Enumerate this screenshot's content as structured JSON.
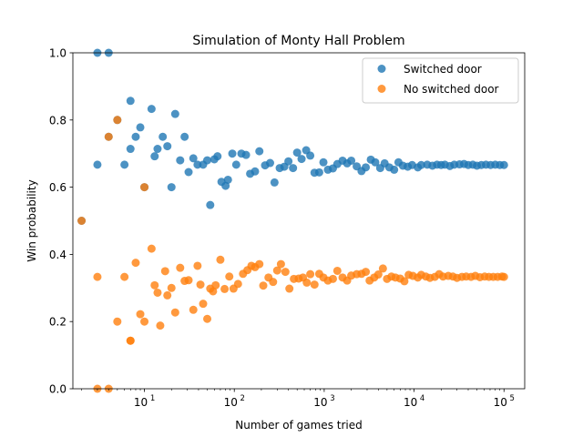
{
  "chart_data": {
    "type": "scatter",
    "title": "Simulation of Monty Hall Problem",
    "xlabel": "Number of games tried",
    "ylabel": "Win probability",
    "xscale": "log",
    "xlim": [
      1.6,
      170000
    ],
    "ylim": [
      0,
      1
    ],
    "grid": false,
    "legend": "top-right",
    "x_ticks": [
      {
        "v": 10,
        "b": "10",
        "e": "1"
      },
      {
        "v": 100,
        "b": "10",
        "e": "2"
      },
      {
        "v": 1000,
        "b": "10",
        "e": "3"
      },
      {
        "v": 10000,
        "b": "10",
        "e": "4"
      },
      {
        "v": 100000,
        "b": "10",
        "e": "5"
      }
    ],
    "y_ticks": [
      "0.0",
      "0.2",
      "0.4",
      "0.6",
      "0.8",
      "1.0"
    ],
    "series": [
      {
        "name": "Switched door",
        "color": "#1f77b4",
        "points": [
          [
            2,
            0.5
          ],
          [
            3,
            0.667
          ],
          [
            3,
            1.0
          ],
          [
            4,
            1.0
          ],
          [
            4,
            0.75
          ],
          [
            5,
            0.8
          ],
          [
            6,
            0.667
          ],
          [
            7,
            0.714
          ],
          [
            7,
            0.857
          ],
          [
            8,
            0.75
          ],
          [
            9,
            0.778
          ],
          [
            10,
            0.6
          ],
          [
            12,
            0.833
          ],
          [
            13,
            0.692
          ],
          [
            14,
            0.714
          ],
          [
            16,
            0.75
          ],
          [
            18,
            0.722
          ],
          [
            20,
            0.6
          ],
          [
            22,
            0.818
          ],
          [
            25,
            0.68
          ],
          [
            28,
            0.75
          ],
          [
            31,
            0.645
          ],
          [
            35,
            0.686
          ],
          [
            39,
            0.667
          ],
          [
            45,
            0.667
          ],
          [
            50,
            0.68
          ],
          [
            54,
            0.547
          ],
          [
            60,
            0.683
          ],
          [
            65,
            0.692
          ],
          [
            72,
            0.616
          ],
          [
            80,
            0.604
          ],
          [
            85,
            0.622
          ],
          [
            95,
            0.7
          ],
          [
            105,
            0.667
          ],
          [
            120,
            0.7
          ],
          [
            135,
            0.696
          ],
          [
            150,
            0.64
          ],
          [
            170,
            0.647
          ],
          [
            190,
            0.707
          ],
          [
            220,
            0.665
          ],
          [
            250,
            0.672
          ],
          [
            280,
            0.614
          ],
          [
            320,
            0.657
          ],
          [
            360,
            0.661
          ],
          [
            400,
            0.677
          ],
          [
            450,
            0.657
          ],
          [
            500,
            0.703
          ],
          [
            560,
            0.684
          ],
          [
            630,
            0.71
          ],
          [
            700,
            0.694
          ],
          [
            780,
            0.643
          ],
          [
            880,
            0.644
          ],
          [
            980,
            0.674
          ],
          [
            1100,
            0.652
          ],
          [
            1250,
            0.656
          ],
          [
            1400,
            0.669
          ],
          [
            1600,
            0.679
          ],
          [
            1800,
            0.671
          ],
          [
            2000,
            0.679
          ],
          [
            2300,
            0.662
          ],
          [
            2600,
            0.648
          ],
          [
            2900,
            0.659
          ],
          [
            3300,
            0.682
          ],
          [
            3700,
            0.674
          ],
          [
            4200,
            0.657
          ],
          [
            4700,
            0.671
          ],
          [
            5300,
            0.659
          ],
          [
            6000,
            0.652
          ],
          [
            6700,
            0.674
          ],
          [
            7500,
            0.664
          ],
          [
            8500,
            0.661
          ],
          [
            9500,
            0.666
          ],
          [
            11000,
            0.659
          ],
          [
            12000,
            0.666
          ],
          [
            14000,
            0.667
          ],
          [
            16000,
            0.664
          ],
          [
            18000,
            0.667
          ],
          [
            20000,
            0.666
          ],
          [
            22000,
            0.667
          ],
          [
            25000,
            0.663
          ],
          [
            28000,
            0.667
          ],
          [
            32000,
            0.668
          ],
          [
            36000,
            0.669
          ],
          [
            40000,
            0.666
          ],
          [
            45000,
            0.667
          ],
          [
            50000,
            0.664
          ],
          [
            56000,
            0.666
          ],
          [
            63000,
            0.667
          ],
          [
            71000,
            0.666
          ],
          [
            80000,
            0.667
          ],
          [
            90000,
            0.666
          ],
          [
            100000,
            0.666
          ]
        ]
      },
      {
        "name": "No switched door",
        "color": "#ff7f0e",
        "points": [
          [
            2,
            0.5
          ],
          [
            3,
            0.333
          ],
          [
            3,
            0.0
          ],
          [
            4,
            0.0
          ],
          [
            4,
            0.75
          ],
          [
            5,
            0.8
          ],
          [
            5,
            0.2
          ],
          [
            6,
            0.333
          ],
          [
            7,
            0.143
          ],
          [
            7,
            0.143
          ],
          [
            8,
            0.375
          ],
          [
            9,
            0.222
          ],
          [
            10,
            0.6
          ],
          [
            10,
            0.2
          ],
          [
            12,
            0.417
          ],
          [
            13,
            0.308
          ],
          [
            14,
            0.286
          ],
          [
            15,
            0.188
          ],
          [
            17,
            0.35
          ],
          [
            18,
            0.278
          ],
          [
            20,
            0.3
          ],
          [
            22,
            0.227
          ],
          [
            25,
            0.36
          ],
          [
            28,
            0.321
          ],
          [
            31,
            0.323
          ],
          [
            35,
            0.235
          ],
          [
            39,
            0.366
          ],
          [
            42,
            0.31
          ],
          [
            45,
            0.253
          ],
          [
            50,
            0.208
          ],
          [
            54,
            0.298
          ],
          [
            58,
            0.29
          ],
          [
            62,
            0.308
          ],
          [
            70,
            0.384
          ],
          [
            78,
            0.297
          ],
          [
            88,
            0.334
          ],
          [
            98,
            0.298
          ],
          [
            110,
            0.312
          ],
          [
            125,
            0.342
          ],
          [
            140,
            0.353
          ],
          [
            155,
            0.366
          ],
          [
            170,
            0.362
          ],
          [
            190,
            0.371
          ],
          [
            210,
            0.307
          ],
          [
            240,
            0.331
          ],
          [
            270,
            0.318
          ],
          [
            300,
            0.352
          ],
          [
            330,
            0.371
          ],
          [
            370,
            0.348
          ],
          [
            410,
            0.298
          ],
          [
            460,
            0.327
          ],
          [
            520,
            0.328
          ],
          [
            580,
            0.331
          ],
          [
            640,
            0.316
          ],
          [
            700,
            0.341
          ],
          [
            780,
            0.31
          ],
          [
            880,
            0.342
          ],
          [
            980,
            0.331
          ],
          [
            1100,
            0.322
          ],
          [
            1250,
            0.327
          ],
          [
            1400,
            0.351
          ],
          [
            1600,
            0.331
          ],
          [
            1800,
            0.322
          ],
          [
            2000,
            0.337
          ],
          [
            2300,
            0.341
          ],
          [
            2600,
            0.342
          ],
          [
            2900,
            0.348
          ],
          [
            3200,
            0.322
          ],
          [
            3600,
            0.331
          ],
          [
            4000,
            0.34
          ],
          [
            4500,
            0.358
          ],
          [
            5000,
            0.327
          ],
          [
            5600,
            0.334
          ],
          [
            6200,
            0.331
          ],
          [
            7000,
            0.328
          ],
          [
            7800,
            0.32
          ],
          [
            8700,
            0.339
          ],
          [
            9700,
            0.336
          ],
          [
            11000,
            0.331
          ],
          [
            12000,
            0.339
          ],
          [
            13500,
            0.334
          ],
          [
            15000,
            0.33
          ],
          [
            17000,
            0.333
          ],
          [
            19000,
            0.341
          ],
          [
            21000,
            0.334
          ],
          [
            24000,
            0.336
          ],
          [
            27000,
            0.334
          ],
          [
            30000,
            0.33
          ],
          [
            34000,
            0.333
          ],
          [
            38000,
            0.334
          ],
          [
            43000,
            0.333
          ],
          [
            48000,
            0.336
          ],
          [
            54000,
            0.332
          ],
          [
            61000,
            0.334
          ],
          [
            68000,
            0.333
          ],
          [
            76000,
            0.333
          ],
          [
            85000,
            0.333
          ],
          [
            95000,
            0.334
          ],
          [
            100000,
            0.333
          ]
        ]
      }
    ]
  }
}
